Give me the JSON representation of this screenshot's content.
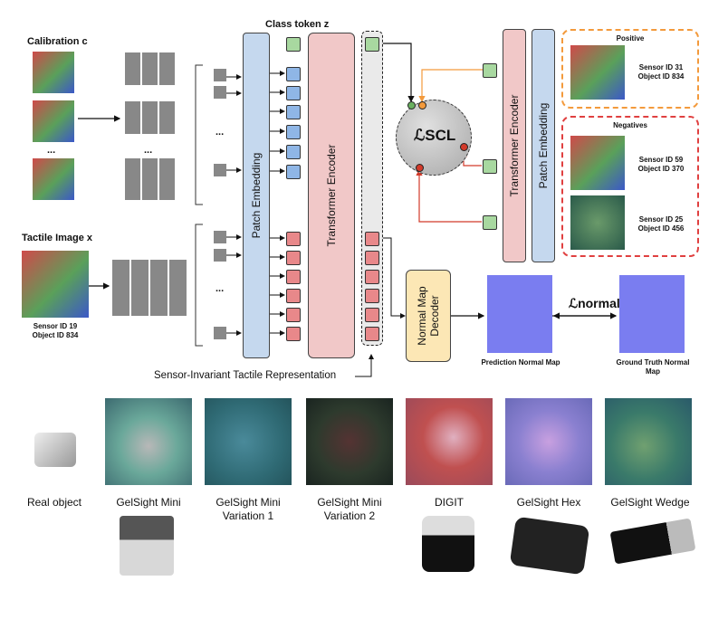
{
  "labels": {
    "class_token": "Class token z",
    "calibration": "Calibration c",
    "tactile_image": "Tactile Image x",
    "ellipsis": "...",
    "patch_embedding": "Patch Embedding",
    "transformer_encoder": "Transformer Encoder",
    "loss_scl": "ℒSCL",
    "positive": "Positive",
    "negatives": "Negatives",
    "normal_map_decoder": "Normal Map Decoder",
    "loss_normal": "ℒnormal",
    "prediction": "Prediction Normal Map",
    "ground_truth": "Ground Truth Normal Map",
    "sensor_invariant": "Sensor-Invariant Tactile Representation"
  },
  "ids": {
    "input_sensor": "Sensor ID 19",
    "input_object": "Object ID 834",
    "pos_sensor": "Sensor ID 31",
    "pos_object": "Object ID 834",
    "neg1_sensor": "Sensor ID 59",
    "neg1_object": "Object ID 370",
    "neg2_sensor": "Sensor ID 25",
    "neg2_object": "Object ID 456"
  },
  "sensors": [
    {
      "name": "Real object"
    },
    {
      "name": "GelSight Mini"
    },
    {
      "name": "GelSight Mini Variation 1"
    },
    {
      "name": "GelSight Mini Variation 2"
    },
    {
      "name": "DIGIT"
    },
    {
      "name": "GelSight Hex"
    },
    {
      "name": "GelSight Wedge"
    }
  ],
  "colors": {
    "patch_embedding": "#c5d8ee",
    "transformer_encoder": "#f1c8c8",
    "decoder": "#fce7b5",
    "positive_border": "#f39a3c",
    "negative_border": "#e04040",
    "loss_circle": "#bfbfbf"
  }
}
